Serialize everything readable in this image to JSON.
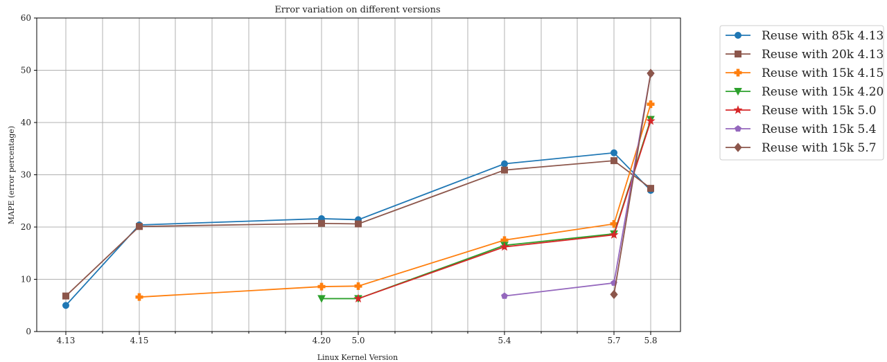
{
  "chart_data": {
    "type": "line",
    "title": "Error variation on different versions",
    "xlabel": "Linux Kernel Version",
    "ylabel": "MAPE (error percentage)",
    "ylim": [
      0,
      60
    ],
    "y_ticks": [
      "0",
      "10",
      "20",
      "30",
      "40",
      "50",
      "60"
    ],
    "x_ticks": [
      "4.13",
      "4.15",
      "4.20",
      "5.0",
      "5.4",
      "5.7",
      "5.8"
    ],
    "grid": true,
    "legend_position": "outside-top-right",
    "series": [
      {
        "name": "Reuse with 85k 4.13",
        "color": "#1f77b4",
        "marker": "circle",
        "x": [
          "4.13",
          "4.15",
          "4.20",
          "5.0",
          "5.4",
          "5.7",
          "5.8"
        ],
        "values": [
          5.0,
          20.4,
          21.6,
          21.4,
          32.1,
          34.2,
          27.0
        ]
      },
      {
        "name": "Reuse with 20k 4.13",
        "color": "#8c564b",
        "marker": "square",
        "x": [
          "4.13",
          "4.15",
          "4.20",
          "5.0",
          "5.4",
          "5.7",
          "5.8"
        ],
        "values": [
          6.8,
          20.1,
          20.7,
          20.6,
          30.9,
          32.7,
          27.4
        ]
      },
      {
        "name": "Reuse with 15k 4.15",
        "color": "#ff7f0e",
        "marker": "plus",
        "x": [
          "4.15",
          "4.20",
          "5.0",
          "5.4",
          "5.7",
          "5.8"
        ],
        "values": [
          6.6,
          8.6,
          8.7,
          17.5,
          20.6,
          43.5
        ]
      },
      {
        "name": "Reuse with 15k 4.20",
        "color": "#2ca02c",
        "marker": "triangle-down",
        "x": [
          "4.20",
          "5.0",
          "5.4",
          "5.7",
          "5.8"
        ],
        "values": [
          6.3,
          6.3,
          16.5,
          18.7,
          40.6
        ]
      },
      {
        "name": "Reuse with 15k 5.0",
        "color": "#d62728",
        "marker": "star",
        "x": [
          "5.0",
          "5.4",
          "5.7",
          "5.8"
        ],
        "values": [
          6.3,
          16.2,
          18.5,
          40.3
        ]
      },
      {
        "name": "Reuse with 15k 5.4",
        "color": "#9467bd",
        "marker": "pentagon",
        "x": [
          "5.4",
          "5.7",
          "5.8"
        ],
        "values": [
          6.8,
          9.3,
          49.4
        ]
      },
      {
        "name": "Reuse with 15k 5.7",
        "color": "#8c564b",
        "marker": "diamond",
        "x": [
          "5.7",
          "5.8"
        ],
        "values": [
          7.1,
          49.4
        ]
      }
    ]
  }
}
